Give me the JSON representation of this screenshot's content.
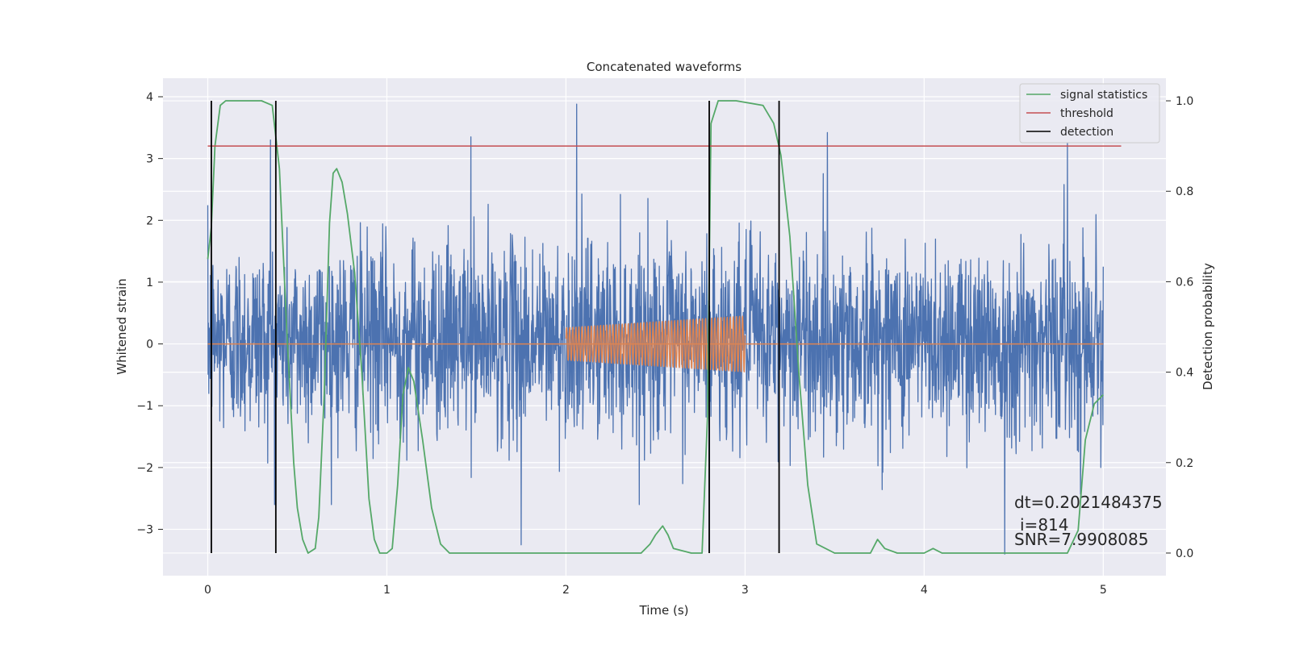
{
  "chart_data": {
    "type": "line",
    "title": "Concatenated waveforms",
    "xlabel": "Time (s)",
    "ylabel": "Whitened strain",
    "ylabel_right": "Detection probability",
    "xlim": [
      -0.25,
      5.35
    ],
    "ylim": [
      -3.75,
      4.3
    ],
    "ylim_right": [
      -0.05,
      1.05
    ],
    "x_ticks": [
      0,
      1,
      2,
      3,
      4,
      5
    ],
    "y_ticks": [
      -3,
      -2,
      -1,
      0,
      1,
      2,
      3,
      4
    ],
    "y_ticks_right": [
      0.0,
      0.2,
      0.4,
      0.6,
      0.8,
      1.0
    ],
    "x_tick_labels": [
      "0",
      "1",
      "2",
      "3",
      "4",
      "5"
    ],
    "y_tick_labels": [
      "−3",
      "−2",
      "−1",
      "0",
      "1",
      "2",
      "3",
      "4"
    ],
    "y_tick_labels_right": [
      "0.0",
      "0.2",
      "0.4",
      "0.6",
      "0.8",
      "1.0"
    ],
    "grid": true,
    "legend_position": "top-right",
    "colors": {
      "plot_background": "#eaeaf2",
      "grid": "#ffffff",
      "strain": "#4c72b0",
      "injected_signal": "#dd8452",
      "signal_statistics": "#55a868",
      "threshold": "#c44e52",
      "detection": "#000000"
    },
    "legend": [
      {
        "label": "signal statistics",
        "color": "#55a868"
      },
      {
        "label": "threshold",
        "color": "#c44e52"
      },
      {
        "label": "detection",
        "color": "#000000"
      }
    ],
    "strain_series": {
      "axis": "left",
      "x_range": [
        0,
        5
      ],
      "mean": 0,
      "typical_range": [
        -2.0,
        2.5
      ],
      "peaks": [
        {
          "x": 1.47,
          "y": 3.35
        },
        {
          "x": 2.06,
          "y": 3.88
        },
        {
          "x": 3.46,
          "y": 3.42
        },
        {
          "x": 0.35,
          "y": 3.3
        },
        {
          "x": 1.75,
          "y": -3.25
        },
        {
          "x": 2.8,
          "y": -3.35
        },
        {
          "x": 4.45,
          "y": -3.4
        },
        {
          "x": 4.8,
          "y": 3.25
        }
      ]
    },
    "injected_signal": {
      "axis": "left",
      "x_range": [
        2.0,
        3.0
      ],
      "baseline": 0,
      "amplitude_start": 0.28,
      "amplitude_end": 0.48,
      "cycles": 58
    },
    "signal_statistics": {
      "axis": "right",
      "x": [
        0.0,
        0.02,
        0.04,
        0.07,
        0.1,
        0.2,
        0.3,
        0.36,
        0.4,
        0.44,
        0.48,
        0.5,
        0.53,
        0.56,
        0.6,
        0.62,
        0.65,
        0.68,
        0.7,
        0.72,
        0.75,
        0.78,
        0.82,
        0.86,
        0.9,
        0.93,
        0.96,
        0.98,
        1.0,
        1.03,
        1.06,
        1.09,
        1.12,
        1.15,
        1.2,
        1.25,
        1.3,
        1.35,
        1.5,
        2.0,
        2.3,
        2.42,
        2.47,
        2.5,
        2.54,
        2.57,
        2.6,
        2.7,
        2.76,
        2.79,
        2.81,
        2.85,
        2.95,
        3.1,
        3.16,
        3.2,
        3.25,
        3.3,
        3.35,
        3.4,
        3.5,
        3.6,
        3.7,
        3.74,
        3.78,
        3.85,
        4.0,
        4.05,
        4.1,
        4.3,
        4.6,
        4.8,
        4.86,
        4.9,
        4.95,
        5.0
      ],
      "y": [
        0.65,
        0.72,
        0.9,
        0.99,
        1.0,
        1.0,
        1.0,
        0.99,
        0.85,
        0.5,
        0.2,
        0.1,
        0.03,
        0.0,
        0.01,
        0.08,
        0.35,
        0.73,
        0.84,
        0.85,
        0.82,
        0.75,
        0.62,
        0.4,
        0.12,
        0.03,
        0.0,
        0.0,
        0.0,
        0.01,
        0.15,
        0.35,
        0.41,
        0.38,
        0.25,
        0.1,
        0.02,
        0.0,
        0.0,
        0.0,
        0.0,
        0.0,
        0.02,
        0.04,
        0.06,
        0.04,
        0.01,
        0.0,
        0.0,
        0.3,
        0.95,
        1.0,
        1.0,
        0.99,
        0.95,
        0.88,
        0.7,
        0.4,
        0.15,
        0.02,
        0.0,
        0.0,
        0.0,
        0.03,
        0.01,
        0.0,
        0.0,
        0.01,
        0.0,
        0.0,
        0.0,
        0.0,
        0.05,
        0.25,
        0.33,
        0.35
      ]
    },
    "threshold": {
      "axis": "right",
      "value": 0.9,
      "x_range": [
        0.0,
        5.1
      ]
    },
    "detections": [
      0.02,
      0.38,
      2.8,
      3.19
    ],
    "annotations": [
      "dt=0.2021484375",
      "i=814",
      "SNR=7.9908085"
    ]
  }
}
